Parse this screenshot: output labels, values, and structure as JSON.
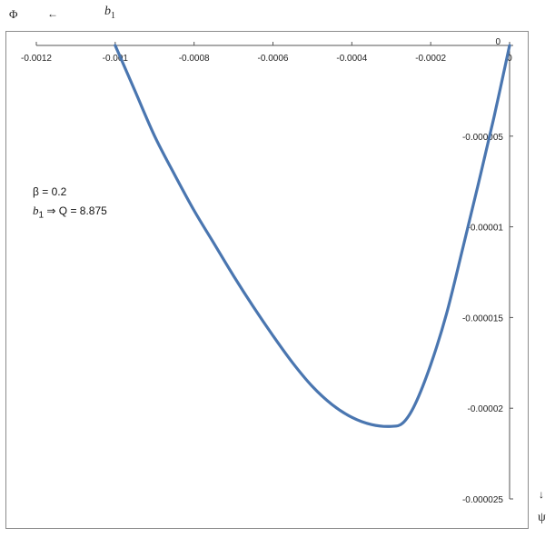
{
  "header": {
    "phi_symbol": "Φ",
    "arrow_left": "←",
    "b1_base": "b",
    "b1_sub": "1"
  },
  "annotation": {
    "beta_line": "β = 0.2",
    "b1_prefix": "b",
    "b1_sub": "1",
    "b1_rest": " ⇒ Q = 8.875"
  },
  "corner": {
    "down_arrow": "↓",
    "psi_symbol": "ψ"
  },
  "chart_data": {
    "type": "line",
    "title": "",
    "xlabel": "",
    "ylabel": "",
    "xlim": [
      -0.0012,
      0
    ],
    "ylim": [
      -2.5e-05,
      0
    ],
    "x_ticks": [
      "-0.0012",
      "-0.001",
      "-0.0008",
      "-0.0006",
      "-0.0004",
      "-0.0002",
      "0"
    ],
    "y_ticks": [
      "0",
      "-0.000005",
      "-0.00001",
      "-0.000015",
      "-0.00002",
      "-0.000025"
    ],
    "grid": false,
    "legend": "none",
    "line_color": "#4a76b0",
    "series": [
      {
        "x": [
          -0.001,
          -0.00095,
          -0.0009,
          -0.00085,
          -0.0008,
          -0.00075,
          -0.0007,
          -0.00065,
          -0.0006,
          -0.00055,
          -0.0005,
          -0.00045,
          -0.0004,
          -0.00035,
          -0.0003,
          -0.00027,
          -0.00024,
          -0.0002,
          -0.00016,
          -0.00012,
          -8e-05,
          -4e-05,
          0
        ],
        "y": [
          0,
          -2.5e-06,
          -5e-06,
          -7.1e-06,
          -9.1e-06,
          -1.09e-05,
          -1.27e-05,
          -1.44e-05,
          -1.6e-05,
          -1.75e-05,
          -1.88e-05,
          -1.98e-05,
          -2.05e-05,
          -2.09e-05,
          -2.1e-05,
          -2.08e-05,
          -1.98e-05,
          -1.76e-05,
          -1.48e-05,
          -1.13e-05,
          -7.7e-06,
          -4e-06,
          0
        ]
      }
    ]
  }
}
